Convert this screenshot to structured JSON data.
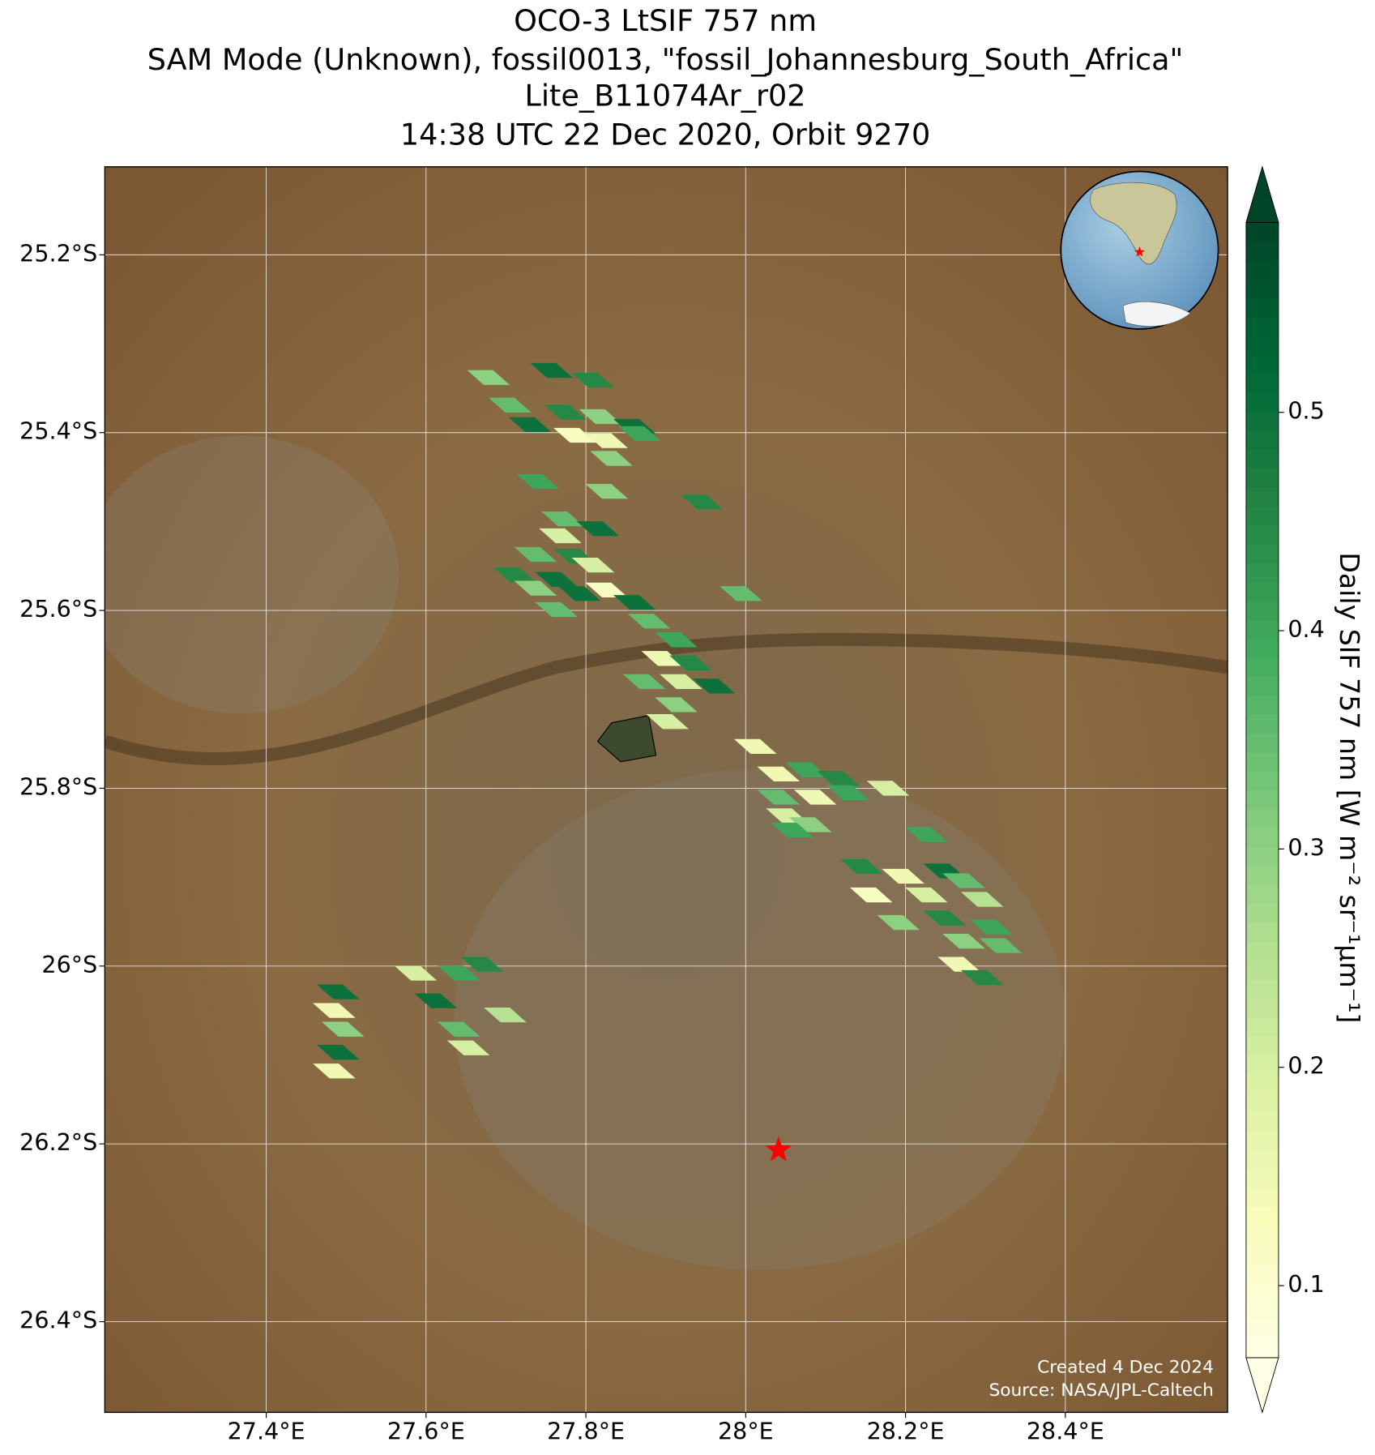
{
  "chart_data": {
    "type": "map-footprints",
    "title": [
      "OCO-3 LtSIF 757 nm",
      "SAM Mode (Unknown), fossil0013, \"fossil_Johannesburg_South_Africa\"",
      "Lite_B11074Ar_r02",
      "14:38 UTC 22 Dec 2020, Orbit 9270"
    ],
    "xlim": [
      27.198,
      28.603
    ],
    "ylim": [
      -26.502,
      -25.101
    ],
    "xticks": [
      {
        "value": 27.4,
        "label": "27.4°E"
      },
      {
        "value": 27.6,
        "label": "27.6°E"
      },
      {
        "value": 27.8,
        "label": "27.8°E"
      },
      {
        "value": 28,
        "label": "28°E"
      },
      {
        "value": 28.2,
        "label": "28.2°E"
      },
      {
        "value": 28.4,
        "label": "28.4°E"
      }
    ],
    "yticks": [
      {
        "value": -25.2,
        "label": "25.2°S"
      },
      {
        "value": -25.4,
        "label": "25.4°S"
      },
      {
        "value": -25.6,
        "label": "25.6°S"
      },
      {
        "value": -25.8,
        "label": "25.8°S"
      },
      {
        "value": -26,
        "label": "26°S"
      },
      {
        "value": -26.2,
        "label": "26.2°S"
      },
      {
        "value": -26.4,
        "label": "26.4°S"
      }
    ],
    "grid": true,
    "colormap": "YlGn",
    "clim": [
      0.067,
      0.587
    ],
    "colorbar_ticks": [
      0.1,
      0.2,
      0.3,
      0.4,
      0.5
    ],
    "colorbar_label": "Daily SIF 757 nm [W m⁻² sr⁻¹µm⁻¹]",
    "site": {
      "lon": 28.041,
      "lat": -26.207,
      "color": "#ff0000"
    },
    "credits": [
      "Created 4 Dec 2024",
      "Source: NASA/JPL-Caltech"
    ],
    "footprints": [
      {
        "lon": 27.678,
        "lat": -25.338,
        "value": 0.3
      },
      {
        "lon": 27.757,
        "lat": -25.33,
        "value": 0.5
      },
      {
        "lon": 27.809,
        "lat": -25.341,
        "value": 0.45
      },
      {
        "lon": 27.705,
        "lat": -25.369,
        "value": 0.35
      },
      {
        "lon": 27.73,
        "lat": -25.391,
        "value": 0.5
      },
      {
        "lon": 27.774,
        "lat": -25.377,
        "value": 0.45
      },
      {
        "lon": 27.818,
        "lat": -25.382,
        "value": 0.3
      },
      {
        "lon": 27.861,
        "lat": -25.393,
        "value": 0.5
      },
      {
        "lon": 27.786,
        "lat": -25.403,
        "value": 0.12
      },
      {
        "lon": 27.826,
        "lat": -25.409,
        "value": 0.15
      },
      {
        "lon": 27.867,
        "lat": -25.401,
        "value": 0.4
      },
      {
        "lon": 27.832,
        "lat": -25.429,
        "value": 0.3
      },
      {
        "lon": 27.74,
        "lat": -25.455,
        "value": 0.4
      },
      {
        "lon": 27.826,
        "lat": -25.466,
        "value": 0.3
      },
      {
        "lon": 27.945,
        "lat": -25.478,
        "value": 0.45
      },
      {
        "lon": 27.771,
        "lat": -25.497,
        "value": 0.35
      },
      {
        "lon": 27.768,
        "lat": -25.516,
        "value": 0.2
      },
      {
        "lon": 27.815,
        "lat": -25.508,
        "value": 0.5
      },
      {
        "lon": 27.737,
        "lat": -25.537,
        "value": 0.35
      },
      {
        "lon": 27.786,
        "lat": -25.539,
        "value": 0.45
      },
      {
        "lon": 27.711,
        "lat": -25.56,
        "value": 0.45
      },
      {
        "lon": 27.763,
        "lat": -25.565,
        "value": 0.5
      },
      {
        "lon": 27.809,
        "lat": -25.549,
        "value": 0.2
      },
      {
        "lon": 27.737,
        "lat": -25.575,
        "value": 0.3
      },
      {
        "lon": 27.792,
        "lat": -25.581,
        "value": 0.5
      },
      {
        "lon": 27.826,
        "lat": -25.577,
        "value": 0.12
      },
      {
        "lon": 27.763,
        "lat": -25.599,
        "value": 0.35
      },
      {
        "lon": 27.861,
        "lat": -25.591,
        "value": 0.5
      },
      {
        "lon": 27.994,
        "lat": -25.581,
        "value": 0.35
      },
      {
        "lon": 27.879,
        "lat": -25.612,
        "value": 0.35
      },
      {
        "lon": 27.913,
        "lat": -25.633,
        "value": 0.4
      },
      {
        "lon": 27.896,
        "lat": -25.654,
        "value": 0.15
      },
      {
        "lon": 27.931,
        "lat": -25.659,
        "value": 0.45
      },
      {
        "lon": 27.96,
        "lat": -25.685,
        "value": 0.5
      },
      {
        "lon": 27.873,
        "lat": -25.68,
        "value": 0.35
      },
      {
        "lon": 27.919,
        "lat": -25.68,
        "value": 0.2
      },
      {
        "lon": 27.913,
        "lat": -25.706,
        "value": 0.3
      },
      {
        "lon": 27.902,
        "lat": -25.725,
        "value": 0.2
      },
      {
        "lon": 28.012,
        "lat": -25.753,
        "value": 0.15
      },
      {
        "lon": 28.041,
        "lat": -25.784,
        "value": 0.15
      },
      {
        "lon": 28.076,
        "lat": -25.779,
        "value": 0.4
      },
      {
        "lon": 28.116,
        "lat": -25.789,
        "value": 0.45
      },
      {
        "lon": 28.041,
        "lat": -25.81,
        "value": 0.35
      },
      {
        "lon": 28.087,
        "lat": -25.81,
        "value": 0.15
      },
      {
        "lon": 28.128,
        "lat": -25.805,
        "value": 0.4
      },
      {
        "lon": 28.052,
        "lat": -25.831,
        "value": 0.2
      },
      {
        "lon": 28.081,
        "lat": -25.841,
        "value": 0.3
      },
      {
        "lon": 28.058,
        "lat": -25.847,
        "value": 0.4
      },
      {
        "lon": 28.178,
        "lat": -25.8,
        "value": 0.2
      },
      {
        "lon": 28.226,
        "lat": -25.852,
        "value": 0.4
      },
      {
        "lon": 28.145,
        "lat": -25.888,
        "value": 0.45
      },
      {
        "lon": 28.197,
        "lat": -25.899,
        "value": 0.15
      },
      {
        "lon": 28.249,
        "lat": -25.893,
        "value": 0.5
      },
      {
        "lon": 28.273,
        "lat": -25.904,
        "value": 0.35
      },
      {
        "lon": 28.157,
        "lat": -25.92,
        "value": 0.12
      },
      {
        "lon": 28.226,
        "lat": -25.92,
        "value": 0.2
      },
      {
        "lon": 28.296,
        "lat": -25.925,
        "value": 0.25
      },
      {
        "lon": 28.191,
        "lat": -25.951,
        "value": 0.3
      },
      {
        "lon": 28.249,
        "lat": -25.946,
        "value": 0.45
      },
      {
        "lon": 28.307,
        "lat": -25.956,
        "value": 0.4
      },
      {
        "lon": 28.273,
        "lat": -25.972,
        "value": 0.3
      },
      {
        "lon": 28.319,
        "lat": -25.977,
        "value": 0.35
      },
      {
        "lon": 28.267,
        "lat": -25.998,
        "value": 0.15
      },
      {
        "lon": 28.296,
        "lat": -26.013,
        "value": 0.45
      },
      {
        "lon": 27.49,
        "lat": -26.029,
        "value": 0.5
      },
      {
        "lon": 27.485,
        "lat": -26.05,
        "value": 0.15
      },
      {
        "lon": 27.496,
        "lat": -26.071,
        "value": 0.3
      },
      {
        "lon": 27.49,
        "lat": -26.097,
        "value": 0.5
      },
      {
        "lon": 27.485,
        "lat": -26.118,
        "value": 0.15
      },
      {
        "lon": 27.587,
        "lat": -26.008,
        "value": 0.2
      },
      {
        "lon": 27.612,
        "lat": -26.039,
        "value": 0.5
      },
      {
        "lon": 27.641,
        "lat": -26.008,
        "value": 0.4
      },
      {
        "lon": 27.67,
        "lat": -25.998,
        "value": 0.45
      },
      {
        "lon": 27.641,
        "lat": -26.071,
        "value": 0.35
      },
      {
        "lon": 27.699,
        "lat": -26.055,
        "value": 0.25
      },
      {
        "lon": 27.653,
        "lat": -26.092,
        "value": 0.2
      }
    ]
  }
}
